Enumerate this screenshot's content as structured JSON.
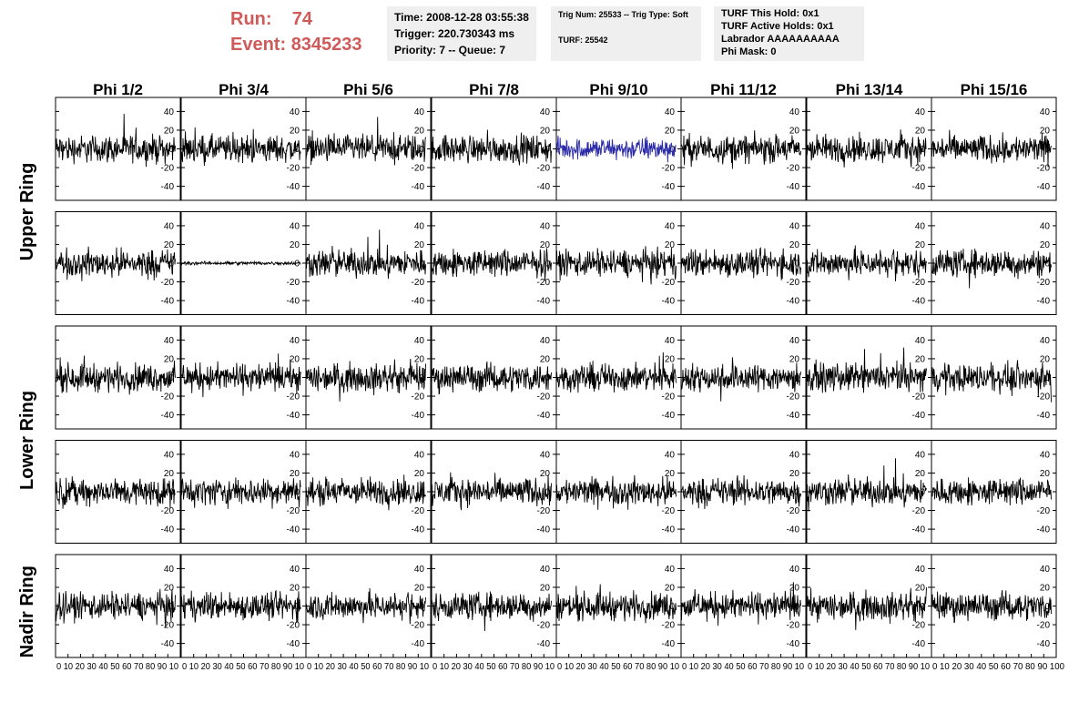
{
  "header": {
    "run_label": "Run:",
    "run_value": "74",
    "event_label": "Event:",
    "event_value": "8345233",
    "time_text": "Time: 2008-12-28 03:55:38",
    "trigger_text": "Trigger: 220.730343 ms",
    "priority_text": "Priority: 7 -- Queue: 7",
    "trig_text": "Trig Num: 25533 -- Trig Type: Soft",
    "turf_text": "TURF: 25542",
    "turf_hold_text": "TURF This Hold: 0x1",
    "turf_active_text": "TURF Active Holds: 0x1",
    "labrador_text": "Labrador AAAAAAAAAA",
    "phimask_text": "Phi Mask: 0"
  },
  "colors": {
    "run_text": "#d05a5a",
    "panel_bg": "#efefef",
    "trace": "#000000",
    "highlight_trace": "#2a2aa8"
  },
  "chart_data": {
    "type": "line",
    "columns": [
      "Phi 1/2",
      "Phi 3/4",
      "Phi 5/6",
      "Phi 7/8",
      "Phi 9/10",
      "Phi 11/12",
      "Phi 13/14",
      "Phi 15/16"
    ],
    "ring_labels": [
      "Upper Ring",
      "Lower Ring",
      "Nadir Ring"
    ],
    "rows": 5,
    "row_ring_groups": [
      [
        0,
        1
      ],
      [
        2,
        3
      ],
      [
        4
      ]
    ],
    "xlim": [
      0,
      100
    ],
    "ylim": [
      -55,
      55
    ],
    "y_ticks": [
      40,
      20,
      0,
      -20,
      -40
    ],
    "x_ticks": [
      0,
      10,
      20,
      30,
      40,
      50,
      60,
      70,
      80,
      90,
      100
    ],
    "x_tick_text": "0 10 20 30 40 50 60 70 80 90 10",
    "last_x_tick_text": "0 10 20 30 40 50 60 70 80 90 100",
    "samples_per_trace": 260,
    "trace_x_range": [
      0,
      96
    ],
    "highlighted": [
      {
        "row": 0,
        "col": 4,
        "x_range": [
          0,
          96
        ],
        "amplitude": 16
      }
    ],
    "flat": [
      {
        "row": 1,
        "col": 1,
        "amplitude": 2.5
      }
    ],
    "default_amplitude": 20
  }
}
